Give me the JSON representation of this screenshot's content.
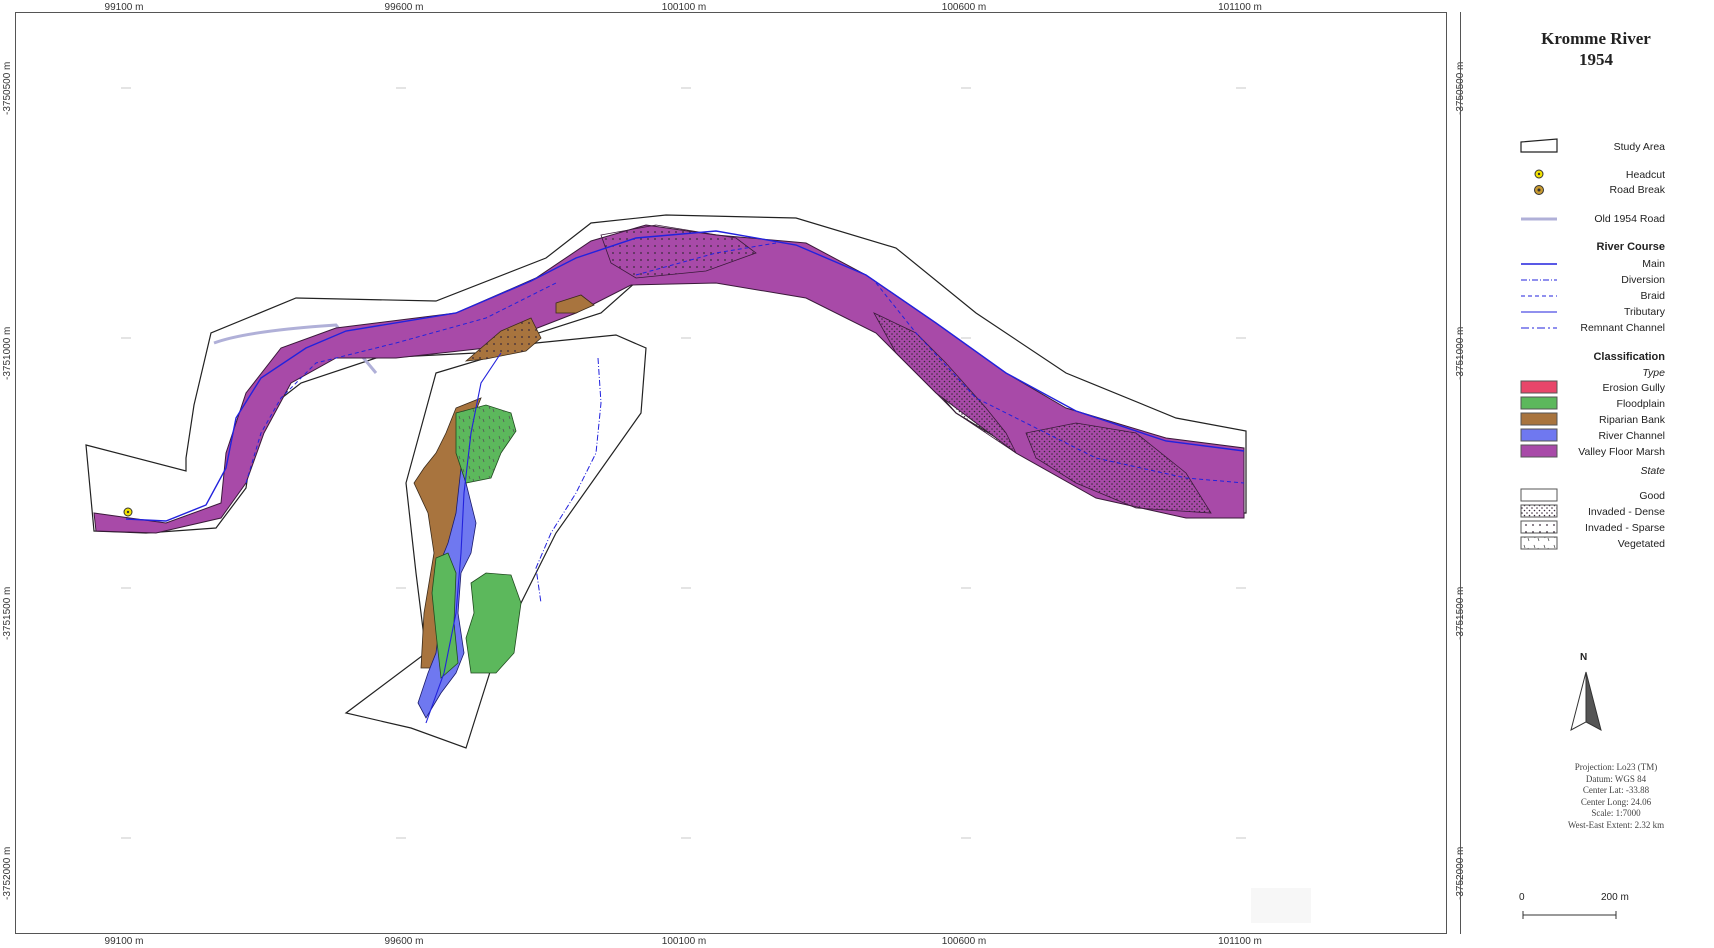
{
  "title": {
    "line1": "Kromme River",
    "line2": "1954"
  },
  "grid": {
    "x_labels": [
      "99100 m",
      "99600 m",
      "100100 m",
      "100600 m",
      "101100 m"
    ],
    "y_labels": [
      "-3750500 m",
      "-3751000 m",
      "-3751500 m",
      "-3752000 m"
    ]
  },
  "legend": {
    "study_area": "Study Area",
    "headcut": "Headcut",
    "road_break": "Road Break",
    "old_road": "Old 1954 Road",
    "river_course_heading": "River Course",
    "river_course": [
      "Main",
      "Diversion",
      "Braid",
      "Tributary",
      "Remnant Channel"
    ],
    "classification_heading": "Classification",
    "type_heading": "Type",
    "types": [
      "Erosion Gully",
      "Floodplain",
      "Riparian Bank",
      "River Channel",
      "Valley Floor Marsh"
    ],
    "state_heading": "State",
    "states": [
      "Good",
      "Invaded - Dense",
      "Invaded - Sparse",
      "Vegetated"
    ]
  },
  "north_arrow": "N",
  "projection_info": [
    "Projection: Lo23 (TM)",
    "Datum: WGS 84",
    "Center Lat: -33.88",
    "Center Long: 24.06",
    "Scale: 1:7000",
    "West-East Extent: 2.32 km"
  ],
  "scale_bar": {
    "start": "0",
    "end": "200 m"
  },
  "colors": {
    "erosion_gully": "#e8466a",
    "floodplain": "#5cb85c",
    "riparian_bank": "#a8743e",
    "river_channel": "#6f78f0",
    "valley_floor_marsh": "#a84aa8",
    "river_line": "#2222dd",
    "old_road": "#b0b0d8"
  }
}
